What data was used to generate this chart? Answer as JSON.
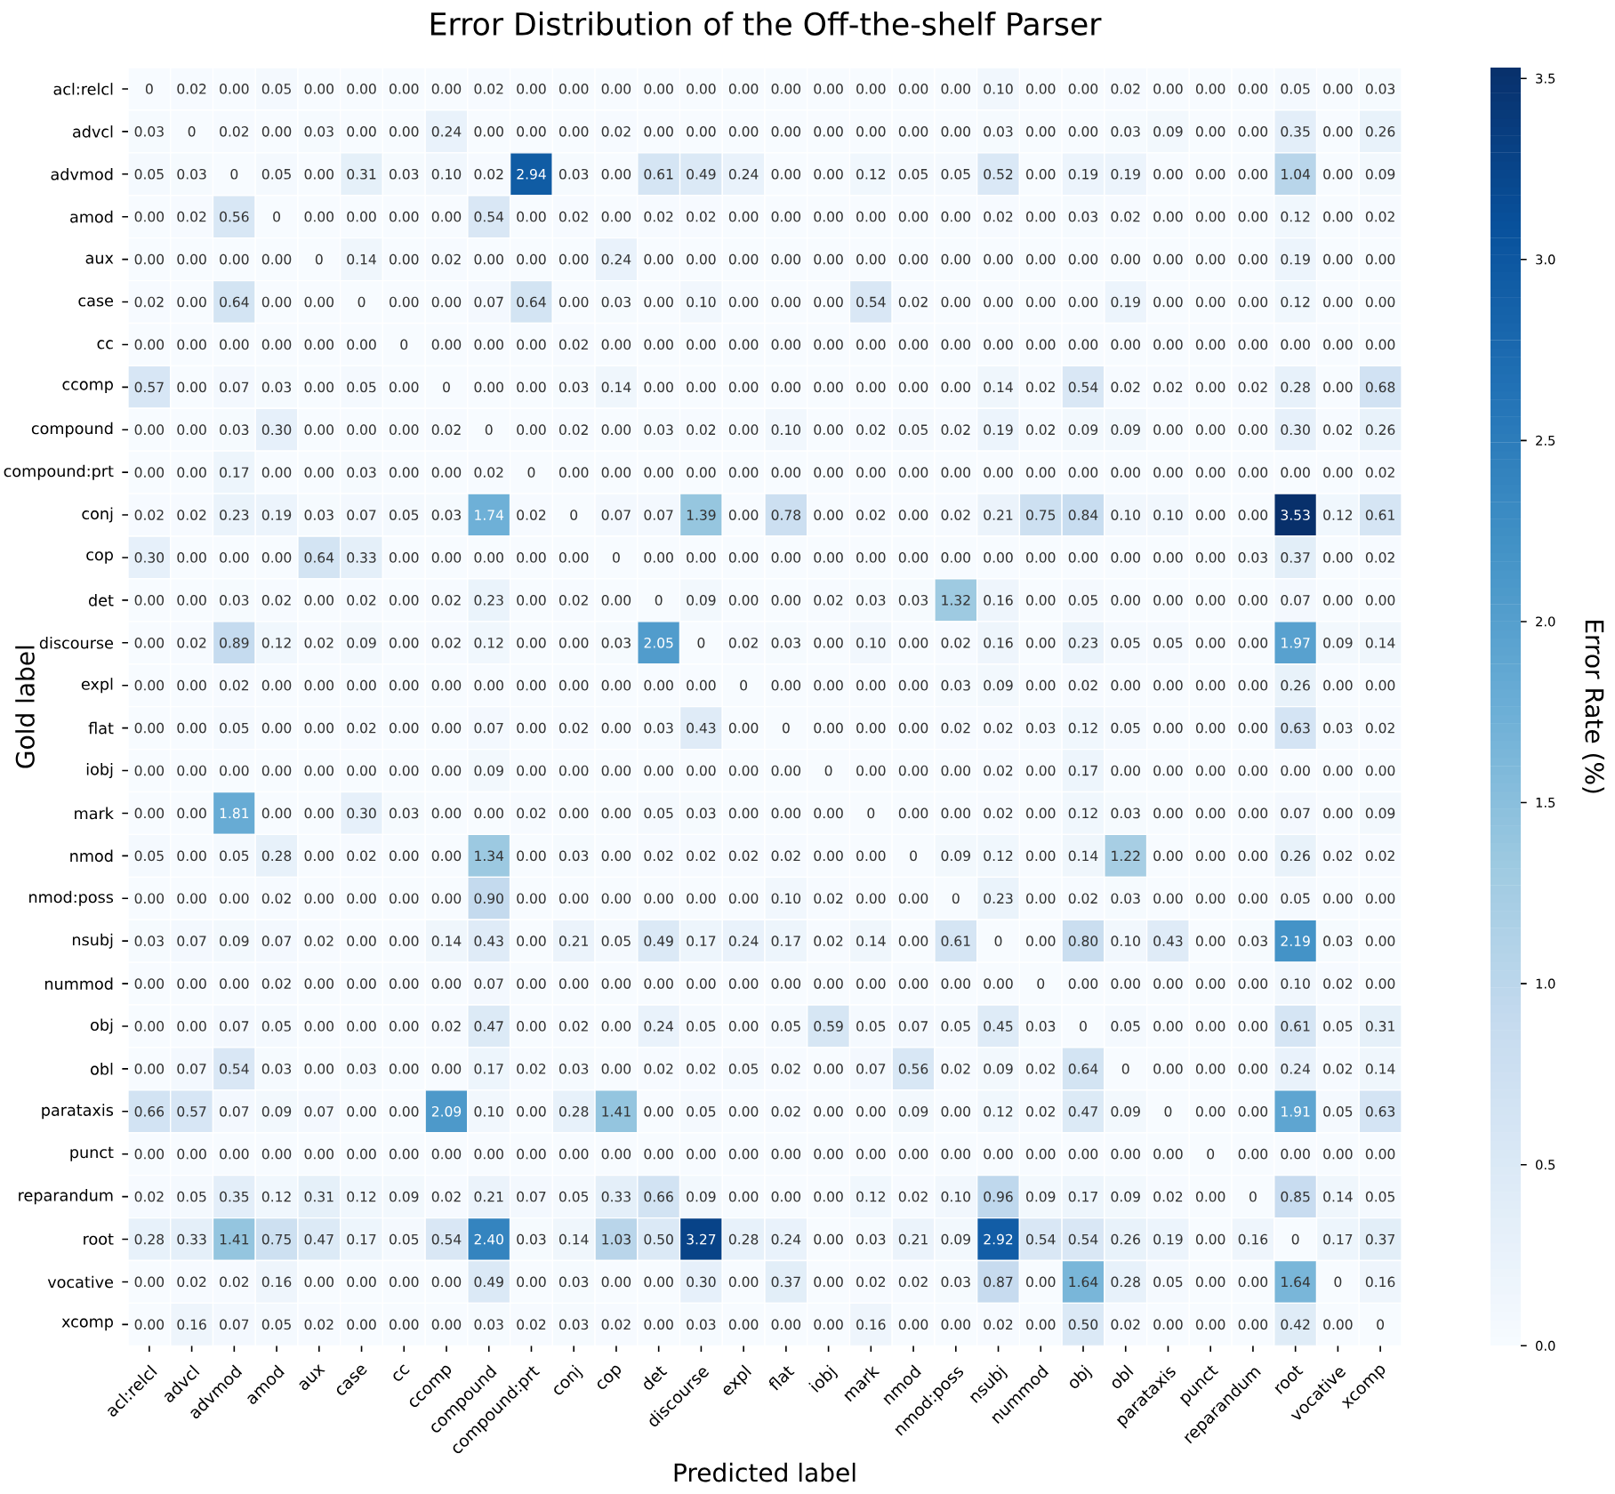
{
  "chart_data": {
    "type": "heatmap",
    "title": "Error Distribution of the Off-the-shelf Parser",
    "xlabel": "Predicted label",
    "ylabel": "Gold label",
    "clabel": "Error Rate (%)",
    "categories": [
      "acl:relcl",
      "advcl",
      "advmod",
      "amod",
      "aux",
      "case",
      "cc",
      "ccomp",
      "compound",
      "compound:prt",
      "conj",
      "cop",
      "det",
      "discourse",
      "expl",
      "flat",
      "iobj",
      "mark",
      "nmod",
      "nmod:poss",
      "nsubj",
      "nummod",
      "obj",
      "obl",
      "parataxis",
      "punct",
      "reparandum",
      "root",
      "vocative",
      "xcomp"
    ],
    "y_categories": [
      "acl:relcl",
      "advcl",
      "advmod",
      "amod",
      "aux",
      "case",
      "cc",
      "ccomp",
      "compound",
      "compound:prt",
      "conj",
      "cop",
      "det",
      "discourse",
      "expl",
      "flat",
      "iobj",
      "mark",
      "nmod",
      "nmod:poss",
      "nsubj",
      "nummod",
      "obj",
      "obl",
      "parataxis",
      "punct",
      "reparandum",
      "root",
      "vocative",
      "xcomp"
    ],
    "cells": [
      [
        0,
        0.02,
        0.0,
        0.05,
        0.0,
        0.0,
        0.0,
        0.0,
        0.02,
        0.0,
        0.0,
        0.0,
        0.0,
        0.0,
        0.0,
        0.0,
        0.0,
        0.0,
        0.0,
        0.0,
        0.1,
        0.0,
        0.0,
        0.02,
        0.0,
        0.0,
        0.0,
        0.05,
        0.0,
        0.03
      ],
      [
        0.03,
        0,
        0.02,
        0.0,
        0.03,
        0.0,
        0.0,
        0.24,
        0.0,
        0.0,
        0.0,
        0.02,
        0.0,
        0.0,
        0.0,
        0.0,
        0.0,
        0.0,
        0.0,
        0.0,
        0.03,
        0.0,
        0.0,
        0.03,
        0.09,
        0.0,
        0.0,
        0.35,
        0.0,
        0.26
      ],
      [
        0.05,
        0.03,
        0,
        0.05,
        0.0,
        0.31,
        0.03,
        0.1,
        0.02,
        2.94,
        0.03,
        0.0,
        0.61,
        0.49,
        0.24,
        0.0,
        0.0,
        0.12,
        0.05,
        0.05,
        0.52,
        0.0,
        0.19,
        0.19,
        0.0,
        0.0,
        0.0,
        1.04,
        0.0,
        0.09
      ],
      [
        0.0,
        0.02,
        0.56,
        0,
        0.0,
        0.0,
        0.0,
        0.0,
        0.54,
        0.0,
        0.02,
        0.0,
        0.02,
        0.02,
        0.0,
        0.0,
        0.0,
        0.0,
        0.0,
        0.0,
        0.02,
        0.0,
        0.03,
        0.02,
        0.0,
        0.0,
        0.0,
        0.12,
        0.0,
        0.02
      ],
      [
        0.0,
        0.0,
        0.0,
        0.0,
        0,
        0.14,
        0.0,
        0.02,
        0.0,
        0.0,
        0.0,
        0.24,
        0.0,
        0.0,
        0.0,
        0.0,
        0.0,
        0.0,
        0.0,
        0.0,
        0.0,
        0.0,
        0.0,
        0.0,
        0.0,
        0.0,
        0.0,
        0.19,
        0.0,
        0.0
      ],
      [
        0.02,
        0.0,
        0.64,
        0.0,
        0.0,
        0,
        0.0,
        0.0,
        0.07,
        0.64,
        0.0,
        0.03,
        0.0,
        0.1,
        0.0,
        0.0,
        0.0,
        0.54,
        0.02,
        0.0,
        0.0,
        0.0,
        0.0,
        0.19,
        0.0,
        0.0,
        0.0,
        0.12,
        0.0,
        0.0
      ],
      [
        0.0,
        0.0,
        0.0,
        0.0,
        0.0,
        0.0,
        0,
        0.0,
        0.0,
        0.0,
        0.02,
        0.0,
        0.0,
        0.0,
        0.0,
        0.0,
        0.0,
        0.0,
        0.0,
        0.0,
        0.0,
        0.0,
        0.0,
        0.0,
        0.0,
        0.0,
        0.0,
        0.0,
        0.0,
        0.0
      ],
      [
        0.57,
        0.0,
        0.07,
        0.03,
        0.0,
        0.05,
        0.0,
        0,
        0.0,
        0.0,
        0.03,
        0.14,
        0.0,
        0.0,
        0.0,
        0.0,
        0.0,
        0.0,
        0.0,
        0.0,
        0.14,
        0.02,
        0.54,
        0.02,
        0.02,
        0.0,
        0.02,
        0.28,
        0.0,
        0.68
      ],
      [
        0.0,
        0.0,
        0.03,
        0.3,
        0.0,
        0.0,
        0.0,
        0.02,
        0,
        0.0,
        0.02,
        0.0,
        0.03,
        0.02,
        0.0,
        0.1,
        0.0,
        0.02,
        0.05,
        0.02,
        0.19,
        0.02,
        0.09,
        0.09,
        0.0,
        0.0,
        0.0,
        0.3,
        0.02,
        0.26
      ],
      [
        0.0,
        0.0,
        0.17,
        0.0,
        0.0,
        0.03,
        0.0,
        0.0,
        0.02,
        0,
        0.0,
        0.0,
        0.0,
        0.0,
        0.0,
        0.0,
        0.0,
        0.0,
        0.0,
        0.0,
        0.0,
        0.0,
        0.0,
        0.0,
        0.0,
        0.0,
        0.0,
        0.0,
        0.0,
        0.02
      ],
      [
        0.02,
        0.02,
        0.23,
        0.19,
        0.03,
        0.07,
        0.05,
        0.03,
        1.74,
        0.02,
        0,
        0.07,
        0.07,
        1.39,
        0.0,
        0.78,
        0.0,
        0.02,
        0.0,
        0.02,
        0.21,
        0.75,
        0.84,
        0.1,
        0.1,
        0.0,
        0.0,
        3.53,
        0.12,
        0.61
      ],
      [
        0.3,
        0.0,
        0.0,
        0.0,
        0.64,
        0.33,
        0.0,
        0.0,
        0.0,
        0.0,
        0.0,
        0,
        0.0,
        0.0,
        0.0,
        0.0,
        0.0,
        0.0,
        0.0,
        0.0,
        0.0,
        0.0,
        0.0,
        0.0,
        0.0,
        0.0,
        0.03,
        0.37,
        0.0,
        0.02
      ],
      [
        0.0,
        0.0,
        0.03,
        0.02,
        0.0,
        0.02,
        0.0,
        0.02,
        0.23,
        0.0,
        0.02,
        0.0,
        0,
        0.09,
        0.0,
        0.0,
        0.02,
        0.03,
        0.03,
        1.32,
        0.16,
        0.0,
        0.05,
        0.0,
        0.0,
        0.0,
        0.0,
        0.07,
        0.0,
        0.0
      ],
      [
        0.0,
        0.02,
        0.89,
        0.12,
        0.02,
        0.09,
        0.0,
        0.02,
        0.12,
        0.0,
        0.0,
        0.03,
        2.05,
        0,
        0.02,
        0.03,
        0.0,
        0.1,
        0.0,
        0.02,
        0.16,
        0.0,
        0.23,
        0.05,
        0.05,
        0.0,
        0.0,
        1.97,
        0.09,
        0.14
      ],
      [
        0.0,
        0.0,
        0.02,
        0.0,
        0.0,
        0.0,
        0.0,
        0.0,
        0.0,
        0.0,
        0.0,
        0.0,
        0.0,
        0.0,
        0,
        0.0,
        0.0,
        0.0,
        0.0,
        0.03,
        0.09,
        0.0,
        0.02,
        0.0,
        0.0,
        0.0,
        0.0,
        0.26,
        0.0,
        0.0
      ],
      [
        0.0,
        0.0,
        0.05,
        0.0,
        0.0,
        0.02,
        0.0,
        0.0,
        0.07,
        0.0,
        0.02,
        0.0,
        0.03,
        0.43,
        0.0,
        0,
        0.0,
        0.0,
        0.0,
        0.02,
        0.02,
        0.03,
        0.12,
        0.05,
        0.0,
        0.0,
        0.0,
        0.63,
        0.03,
        0.02
      ],
      [
        0.0,
        0.0,
        0.0,
        0.0,
        0.0,
        0.0,
        0.0,
        0.0,
        0.09,
        0.0,
        0.0,
        0.0,
        0.0,
        0.0,
        0.0,
        0.0,
        0,
        0.0,
        0.0,
        0.0,
        0.02,
        0.0,
        0.17,
        0.0,
        0.0,
        0.0,
        0.0,
        0.0,
        0.0,
        0.0
      ],
      [
        0.0,
        0.0,
        1.81,
        0.0,
        0.0,
        0.3,
        0.03,
        0.0,
        0.0,
        0.02,
        0.0,
        0.0,
        0.05,
        0.03,
        0.0,
        0.0,
        0.0,
        0,
        0.0,
        0.0,
        0.02,
        0.0,
        0.12,
        0.03,
        0.0,
        0.0,
        0.0,
        0.07,
        0.0,
        0.09
      ],
      [
        0.05,
        0.0,
        0.05,
        0.28,
        0.0,
        0.02,
        0.0,
        0.0,
        1.34,
        0.0,
        0.03,
        0.0,
        0.02,
        0.02,
        0.02,
        0.02,
        0.0,
        0.0,
        0,
        0.09,
        0.12,
        0.0,
        0.14,
        1.22,
        0.0,
        0.0,
        0.0,
        0.26,
        0.02,
        0.02
      ],
      [
        0.0,
        0.0,
        0.0,
        0.02,
        0.0,
        0.0,
        0.0,
        0.0,
        0.9,
        0.0,
        0.0,
        0.0,
        0.0,
        0.0,
        0.0,
        0.1,
        0.02,
        0.0,
        0.0,
        0,
        0.23,
        0.0,
        0.02,
        0.03,
        0.0,
        0.0,
        0.0,
        0.05,
        0.0,
        0.0
      ],
      [
        0.03,
        0.07,
        0.09,
        0.07,
        0.02,
        0.0,
        0.0,
        0.14,
        0.43,
        0.0,
        0.21,
        0.05,
        0.49,
        0.17,
        0.24,
        0.17,
        0.02,
        0.14,
        0.0,
        0.61,
        0,
        0.0,
        0.8,
        0.1,
        0.43,
        0.0,
        0.03,
        2.19,
        0.03,
        0.0
      ],
      [
        0.0,
        0.0,
        0.0,
        0.02,
        0.0,
        0.0,
        0.0,
        0.0,
        0.07,
        0.0,
        0.0,
        0.0,
        0.0,
        0.0,
        0.0,
        0.0,
        0.0,
        0.0,
        0.0,
        0.0,
        0.0,
        0,
        0.0,
        0.0,
        0.0,
        0.0,
        0.0,
        0.1,
        0.02,
        0.0
      ],
      [
        0.0,
        0.0,
        0.07,
        0.05,
        0.0,
        0.0,
        0.0,
        0.02,
        0.47,
        0.0,
        0.02,
        0.0,
        0.24,
        0.05,
        0.0,
        0.05,
        0.59,
        0.05,
        0.07,
        0.05,
        0.45,
        0.03,
        0,
        0.05,
        0.0,
        0.0,
        0.0,
        0.61,
        0.05,
        0.31
      ],
      [
        0.0,
        0.07,
        0.54,
        0.03,
        0.0,
        0.03,
        0.0,
        0.0,
        0.17,
        0.02,
        0.03,
        0.0,
        0.02,
        0.02,
        0.05,
        0.02,
        0.0,
        0.07,
        0.56,
        0.02,
        0.09,
        0.02,
        0.64,
        0,
        0.0,
        0.0,
        0.0,
        0.24,
        0.02,
        0.14
      ],
      [
        0.66,
        0.57,
        0.07,
        0.09,
        0.07,
        0.0,
        0.0,
        2.09,
        0.1,
        0.0,
        0.28,
        1.41,
        0.0,
        0.05,
        0.0,
        0.02,
        0.0,
        0.0,
        0.09,
        0.0,
        0.12,
        0.02,
        0.47,
        0.09,
        0,
        0.0,
        0.0,
        1.91,
        0.05,
        0.63
      ],
      [
        0.0,
        0.0,
        0.0,
        0.0,
        0.0,
        0.0,
        0.0,
        0.0,
        0.0,
        0.0,
        0.0,
        0.0,
        0.0,
        0.0,
        0.0,
        0.0,
        0.0,
        0.0,
        0.0,
        0.0,
        0.0,
        0.0,
        0.0,
        0.0,
        0.0,
        0,
        0.0,
        0.0,
        0.0,
        0.0
      ],
      [
        0.02,
        0.05,
        0.35,
        0.12,
        0.31,
        0.12,
        0.09,
        0.02,
        0.21,
        0.07,
        0.05,
        0.33,
        0.66,
        0.09,
        0.0,
        0.0,
        0.0,
        0.12,
        0.02,
        0.1,
        0.96,
        0.09,
        0.17,
        0.09,
        0.02,
        0.0,
        0,
        0.85,
        0.14,
        0.05
      ],
      [
        0.28,
        0.33,
        1.41,
        0.75,
        0.47,
        0.17,
        0.05,
        0.54,
        2.4,
        0.03,
        0.14,
        1.03,
        0.5,
        3.27,
        0.28,
        0.24,
        0.0,
        0.03,
        0.21,
        0.09,
        2.92,
        0.54,
        0.54,
        0.26,
        0.19,
        0.0,
        0.16,
        0,
        0.17,
        0.37
      ],
      [
        0.0,
        0.02,
        0.02,
        0.16,
        0.0,
        0.0,
        0.0,
        0.0,
        0.49,
        0.0,
        0.03,
        0.0,
        0.0,
        0.3,
        0.0,
        0.37,
        0.0,
        0.02,
        0.02,
        0.03,
        0.87,
        0.0,
        1.64,
        0.28,
        0.05,
        0.0,
        0.0,
        1.64,
        0,
        0.16
      ],
      [
        0.0,
        0.16,
        0.07,
        0.05,
        0.02,
        0.0,
        0.0,
        0.0,
        0.03,
        0.02,
        0.03,
        0.02,
        0.0,
        0.03,
        0.0,
        0.0,
        0.0,
        0.16,
        0.0,
        0.0,
        0.02,
        0.0,
        0.5,
        0.02,
        0.0,
        0.0,
        0.0,
        0.42,
        0.0,
        0
      ]
    ],
    "cell_labels": [
      [
        "0",
        "0.02",
        "0.00",
        "0.05",
        "0.00",
        "0.00",
        "0.00",
        "0.00",
        "0.02",
        "0.00",
        "0.00",
        "0.00",
        "0.00",
        "0.00",
        "0.00",
        "0.00",
        "0.00",
        "0.00",
        "0.00",
        "0.00",
        "0.10",
        "0.00",
        "0.00",
        "0.02",
        "0.00",
        "0.00",
        "0.00",
        "0.05",
        "0.00",
        "0.03"
      ],
      [
        "0.03",
        "0",
        "0.02",
        "0.00",
        "0.03",
        "0.00",
        "0.00",
        "0.24",
        "0.00",
        "0.00",
        "0.00",
        "0.02",
        "0.00",
        "0.00",
        "0.00",
        "0.00",
        "0.00",
        "0.00",
        "0.00",
        "0.00",
        "0.03",
        "0.00",
        "0.00",
        "0.03",
        "0.09",
        "0.00",
        "0.00",
        "0.35",
        "0.00",
        "0.26"
      ],
      [
        "0.05",
        "0.03",
        "0",
        "0.05",
        "0.00",
        "0.31",
        "0.03",
        "0.10",
        "0.02",
        "2.94",
        "0.03",
        "0.00",
        "0.61",
        "0.49",
        "0.24",
        "0.00",
        "0.00",
        "0.12",
        "0.05",
        "0.05",
        "0.52",
        "0.00",
        "0.19",
        "0.19",
        "0.00",
        "0.00",
        "0.00",
        "1.04",
        "0.00",
        "0.09"
      ],
      [
        "0.00",
        "0.02",
        "0.56",
        "0",
        "0.00",
        "0.00",
        "0.00",
        "0.00",
        "0.54",
        "0.00",
        "0.02",
        "0.00",
        "0.02",
        "0.02",
        "0.00",
        "0.00",
        "0.00",
        "0.00",
        "0.00",
        "0.00",
        "0.02",
        "0.00",
        "0.03",
        "0.02",
        "0.00",
        "0.00",
        "0.00",
        "0.12",
        "0.00",
        "0.02"
      ],
      [
        "0.00",
        "0.00",
        "0.00",
        "0.00",
        "0",
        "0.14",
        "0.00",
        "0.02",
        "0.00",
        "0.00",
        "0.00",
        "0.24",
        "0.00",
        "0.00",
        "0.00",
        "0.00",
        "0.00",
        "0.00",
        "0.00",
        "0.00",
        "0.00",
        "0.00",
        "0.00",
        "0.00",
        "0.00",
        "0.00",
        "0.00",
        "0.19",
        "0.00",
        "0.00"
      ],
      [
        "0.02",
        "0.00",
        "0.64",
        "0.00",
        "0.00",
        "0",
        "0.00",
        "0.00",
        "0.07",
        "0.64",
        "0.00",
        "0.03",
        "0.00",
        "0.10",
        "0.00",
        "0.00",
        "0.00",
        "0.54",
        "0.02",
        "0.00",
        "0.00",
        "0.00",
        "0.00",
        "0.19",
        "0.00",
        "0.00",
        "0.00",
        "0.12",
        "0.00",
        "0.00"
      ],
      [
        "0.00",
        "0.00",
        "0.00",
        "0.00",
        "0.00",
        "0.00",
        "0",
        "0.00",
        "0.00",
        "0.00",
        "0.02",
        "0.00",
        "0.00",
        "0.00",
        "0.00",
        "0.00",
        "0.00",
        "0.00",
        "0.00",
        "0.00",
        "0.00",
        "0.00",
        "0.00",
        "0.00",
        "0.00",
        "0.00",
        "0.00",
        "0.00",
        "0.00",
        "0.00"
      ],
      [
        "0.57",
        "0.00",
        "0.07",
        "0.03",
        "0.00",
        "0.05",
        "0.00",
        "0",
        "0.00",
        "0.00",
        "0.03",
        "0.14",
        "0.00",
        "0.00",
        "0.00",
        "0.00",
        "0.00",
        "0.00",
        "0.00",
        "0.00",
        "0.14",
        "0.02",
        "0.54",
        "0.02",
        "0.02",
        "0.00",
        "0.02",
        "0.28",
        "0.00",
        "0.68"
      ],
      [
        "0.00",
        "0.00",
        "0.03",
        "0.30",
        "0.00",
        "0.00",
        "0.00",
        "0.02",
        "0",
        "0.00",
        "0.02",
        "0.00",
        "0.03",
        "0.02",
        "0.00",
        "0.10",
        "0.00",
        "0.02",
        "0.05",
        "0.02",
        "0.19",
        "0.02",
        "0.09",
        "0.09",
        "0.00",
        "0.00",
        "0.00",
        "0.30",
        "0.02",
        "0.26"
      ],
      [
        "0.00",
        "0.00",
        "0.17",
        "0.00",
        "0.00",
        "0.03",
        "0.00",
        "0.00",
        "0.02",
        "0",
        "0.00",
        "0.00",
        "0.00",
        "0.00",
        "0.00",
        "0.00",
        "0.00",
        "0.00",
        "0.00",
        "0.00",
        "0.00",
        "0.00",
        "0.00",
        "0.00",
        "0.00",
        "0.00",
        "0.00",
        "0.00",
        "0.00",
        "0.02"
      ],
      [
        "0.02",
        "0.02",
        "0.23",
        "0.19",
        "0.03",
        "0.07",
        "0.05",
        "0.03",
        "1.74",
        "0.02",
        "0",
        "0.07",
        "0.07",
        "1.39",
        "0.00",
        "0.78",
        "0.00",
        "0.02",
        "0.00",
        "0.02",
        "0.21",
        "0.75",
        "0.84",
        "0.10",
        "0.10",
        "0.00",
        "0.00",
        "3.53",
        "0.12",
        "0.61"
      ],
      [
        "0.30",
        "0.00",
        "0.00",
        "0.00",
        "0.64",
        "0.33",
        "0.00",
        "0.00",
        "0.00",
        "0.00",
        "0.00",
        "0",
        "0.00",
        "0.00",
        "0.00",
        "0.00",
        "0.00",
        "0.00",
        "0.00",
        "0.00",
        "0.00",
        "0.00",
        "0.00",
        "0.00",
        "0.00",
        "0.00",
        "0.03",
        "0.37",
        "0.00",
        "0.02"
      ],
      [
        "0.00",
        "0.00",
        "0.03",
        "0.02",
        "0.00",
        "0.02",
        "0.00",
        "0.02",
        "0.23",
        "0.00",
        "0.02",
        "0.00",
        "0",
        "0.09",
        "0.00",
        "0.00",
        "0.02",
        "0.03",
        "0.03",
        "1.32",
        "0.16",
        "0.00",
        "0.05",
        "0.00",
        "0.00",
        "0.00",
        "0.00",
        "0.07",
        "0.00",
        "0.00"
      ],
      [
        "0.00",
        "0.02",
        "0.89",
        "0.12",
        "0.02",
        "0.09",
        "0.00",
        "0.02",
        "0.12",
        "0.00",
        "0.00",
        "0.03",
        "2.05",
        "0",
        "0.02",
        "0.03",
        "0.00",
        "0.10",
        "0.00",
        "0.02",
        "0.16",
        "0.00",
        "0.23",
        "0.05",
        "0.05",
        "0.00",
        "0.00",
        "1.97",
        "0.09",
        "0.14"
      ],
      [
        "0.00",
        "0.00",
        "0.02",
        "0.00",
        "0.00",
        "0.00",
        "0.00",
        "0.00",
        "0.00",
        "0.00",
        "0.00",
        "0.00",
        "0.00",
        "0.00",
        "0",
        "0.00",
        "0.00",
        "0.00",
        "0.00",
        "0.03",
        "0.09",
        "0.00",
        "0.02",
        "0.00",
        "0.00",
        "0.00",
        "0.00",
        "0.26",
        "0.00",
        "0.00"
      ],
      [
        "0.00",
        "0.00",
        "0.05",
        "0.00",
        "0.00",
        "0.02",
        "0.00",
        "0.00",
        "0.07",
        "0.00",
        "0.02",
        "0.00",
        "0.03",
        "0.43",
        "0.00",
        "0",
        "0.00",
        "0.00",
        "0.00",
        "0.02",
        "0.02",
        "0.03",
        "0.12",
        "0.05",
        "0.00",
        "0.00",
        "0.00",
        "0.63",
        "0.03",
        "0.02"
      ],
      [
        "0.00",
        "0.00",
        "0.00",
        "0.00",
        "0.00",
        "0.00",
        "0.00",
        "0.00",
        "0.09",
        "0.00",
        "0.00",
        "0.00",
        "0.00",
        "0.00",
        "0.00",
        "0.00",
        "0",
        "0.00",
        "0.00",
        "0.00",
        "0.02",
        "0.00",
        "0.17",
        "0.00",
        "0.00",
        "0.00",
        "0.00",
        "0.00",
        "0.00",
        "0.00"
      ],
      [
        "0.00",
        "0.00",
        "1.81",
        "0.00",
        "0.00",
        "0.30",
        "0.03",
        "0.00",
        "0.00",
        "0.02",
        "0.00",
        "0.00",
        "0.05",
        "0.03",
        "0.00",
        "0.00",
        "0.00",
        "0",
        "0.00",
        "0.00",
        "0.02",
        "0.00",
        "0.12",
        "0.03",
        "0.00",
        "0.00",
        "0.00",
        "0.07",
        "0.00",
        "0.09"
      ],
      [
        "0.05",
        "0.00",
        "0.05",
        "0.28",
        "0.00",
        "0.02",
        "0.00",
        "0.00",
        "1.34",
        "0.00",
        "0.03",
        "0.00",
        "0.02",
        "0.02",
        "0.02",
        "0.02",
        "0.00",
        "0.00",
        "0",
        "0.09",
        "0.12",
        "0.00",
        "0.14",
        "1.22",
        "0.00",
        "0.00",
        "0.00",
        "0.26",
        "0.02",
        "0.02"
      ],
      [
        "0.00",
        "0.00",
        "0.00",
        "0.02",
        "0.00",
        "0.00",
        "0.00",
        "0.00",
        "0.90",
        "0.00",
        "0.00",
        "0.00",
        "0.00",
        "0.00",
        "0.00",
        "0.10",
        "0.02",
        "0.00",
        "0.00",
        "0",
        "0.23",
        "0.00",
        "0.02",
        "0.03",
        "0.00",
        "0.00",
        "0.00",
        "0.05",
        "0.00",
        "0.00"
      ],
      [
        "0.03",
        "0.07",
        "0.09",
        "0.07",
        "0.02",
        "0.00",
        "0.00",
        "0.14",
        "0.43",
        "0.00",
        "0.21",
        "0.05",
        "0.49",
        "0.17",
        "0.24",
        "0.17",
        "0.02",
        "0.14",
        "0.00",
        "0.61",
        "0",
        "0.00",
        "0.80",
        "0.10",
        "0.43",
        "0.00",
        "0.03",
        "2.19",
        "0.03",
        "0.00"
      ],
      [
        "0.00",
        "0.00",
        "0.00",
        "0.02",
        "0.00",
        "0.00",
        "0.00",
        "0.00",
        "0.07",
        "0.00",
        "0.00",
        "0.00",
        "0.00",
        "0.00",
        "0.00",
        "0.00",
        "0.00",
        "0.00",
        "0.00",
        "0.00",
        "0.00",
        "0",
        "0.00",
        "0.00",
        "0.00",
        "0.00",
        "0.00",
        "0.10",
        "0.02",
        "0.00"
      ],
      [
        "0.00",
        "0.00",
        "0.07",
        "0.05",
        "0.00",
        "0.00",
        "0.00",
        "0.02",
        "0.47",
        "0.00",
        "0.02",
        "0.00",
        "0.24",
        "0.05",
        "0.00",
        "0.05",
        "0.59",
        "0.05",
        "0.07",
        "0.05",
        "0.45",
        "0.03",
        "0",
        "0.05",
        "0.00",
        "0.00",
        "0.00",
        "0.61",
        "0.05",
        "0.31"
      ],
      [
        "0.00",
        "0.07",
        "0.54",
        "0.03",
        "0.00",
        "0.03",
        "0.00",
        "0.00",
        "0.17",
        "0.02",
        "0.03",
        "0.00",
        "0.02",
        "0.02",
        "0.05",
        "0.02",
        "0.00",
        "0.07",
        "0.56",
        "0.02",
        "0.09",
        "0.02",
        "0.64",
        "0",
        "0.00",
        "0.00",
        "0.00",
        "0.24",
        "0.02",
        "0.14"
      ],
      [
        "0.66",
        "0.57",
        "0.07",
        "0.09",
        "0.07",
        "0.00",
        "0.00",
        "2.09",
        "0.10",
        "0.00",
        "0.28",
        "1.41",
        "0.00",
        "0.05",
        "0.00",
        "0.02",
        "0.00",
        "0.00",
        "0.09",
        "0.00",
        "0.12",
        "0.02",
        "0.47",
        "0.09",
        "0",
        "0.00",
        "0.00",
        "1.91",
        "0.05",
        "0.63"
      ],
      [
        "0.00",
        "0.00",
        "0.00",
        "0.00",
        "0.00",
        "0.00",
        "0.00",
        "0.00",
        "0.00",
        "0.00",
        "0.00",
        "0.00",
        "0.00",
        "0.00",
        "0.00",
        "0.00",
        "0.00",
        "0.00",
        "0.00",
        "0.00",
        "0.00",
        "0.00",
        "0.00",
        "0.00",
        "0.00",
        "0",
        "0.00",
        "0.00",
        "0.00",
        "0.00"
      ],
      [
        "0.02",
        "0.05",
        "0.35",
        "0.12",
        "0.31",
        "0.12",
        "0.09",
        "0.02",
        "0.21",
        "0.07",
        "0.05",
        "0.33",
        "0.66",
        "0.09",
        "0.00",
        "0.00",
        "0.00",
        "0.12",
        "0.02",
        "0.10",
        "0.96",
        "0.09",
        "0.17",
        "0.09",
        "0.02",
        "0.00",
        "0",
        "0.85",
        "0.14",
        "0.05"
      ],
      [
        "0.28",
        "0.33",
        "1.41",
        "0.75",
        "0.47",
        "0.17",
        "0.05",
        "0.54",
        "2.40",
        "0.03",
        "0.14",
        "1.03",
        "0.50",
        "3.27",
        "0.28",
        "0.24",
        "0.00",
        "0.03",
        "0.21",
        "0.09",
        "2.92",
        "0.54",
        "0.54",
        "0.26",
        "0.19",
        "0.00",
        "0.16",
        "0",
        "0.17",
        "0.37"
      ],
      [
        "0.00",
        "0.02",
        "0.02",
        "0.16",
        "0.00",
        "0.00",
        "0.00",
        "0.00",
        "0.49",
        "0.00",
        "0.03",
        "0.00",
        "0.00",
        "0.30",
        "0.00",
        "0.37",
        "0.00",
        "0.02",
        "0.02",
        "0.03",
        "0.87",
        "0.00",
        "1.64",
        "0.28",
        "0.05",
        "0.00",
        "0.00",
        "1.64",
        "0",
        "0.16"
      ],
      [
        "0.00",
        "0.16",
        "0.07",
        "0.05",
        "0.02",
        "0.00",
        "0.00",
        "0.00",
        "0.03",
        "0.02",
        "0.03",
        "0.02",
        "0.00",
        "0.03",
        "0.00",
        "0.00",
        "0.00",
        "0.16",
        "0.00",
        "0.00",
        "0.02",
        "0.00",
        "0.50",
        "0.02",
        "0.00",
        "0.00",
        "0.00",
        "0.42",
        "0.00",
        "0"
      ]
    ],
    "clim": [
      0,
      3.53
    ],
    "cticks": [
      {
        "value": 0,
        "label": "0.0"
      },
      {
        "value": 0.5,
        "label": "0.5"
      },
      {
        "value": 1,
        "label": "1.0"
      },
      {
        "value": 1.5,
        "label": "1.5"
      },
      {
        "value": 2,
        "label": "2.0"
      },
      {
        "value": 2.5,
        "label": "2.5"
      },
      {
        "value": 3,
        "label": "3.0"
      },
      {
        "value": 3.5,
        "label": "3.5"
      }
    ]
  }
}
